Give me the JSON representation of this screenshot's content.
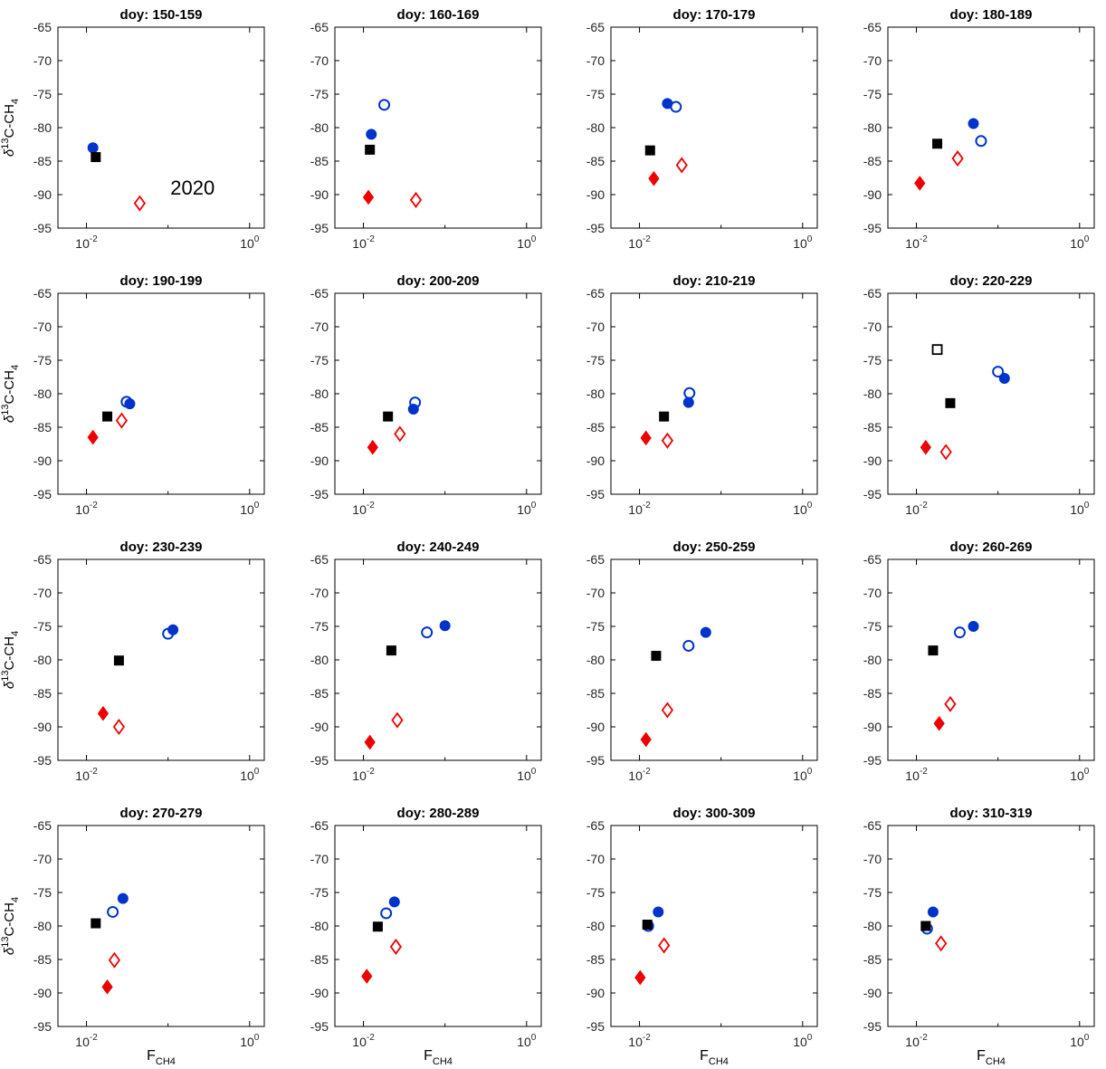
{
  "figure": {
    "ylabel": {
      "delta": "δ",
      "sup": "13",
      "main": "C-CH",
      "sub": "4"
    },
    "xlabel": {
      "main": "F",
      "sub": "CH4"
    },
    "ylim": [
      -95,
      -65
    ],
    "yticks": [
      -65,
      -70,
      -75,
      -80,
      -85,
      -90,
      -95
    ],
    "xlog_range": [
      -2.35,
      0.18
    ],
    "xticks": [
      {
        "log": -2,
        "base": "10",
        "exp": "-2"
      },
      {
        "log": 0,
        "base": "10",
        "exp": "0"
      }
    ],
    "xminor_logs": [
      -1
    ],
    "grid": false,
    "legend": "none",
    "colors": {
      "blue": "#0033cc",
      "red": "#ee0000",
      "black": "#000000",
      "tick_text": "#262626"
    },
    "markers": {
      "square-filled": {
        "shape": "square",
        "fill": "#000000",
        "stroke": "#000000"
      },
      "square-open": {
        "shape": "square",
        "fill": "none",
        "stroke": "#000000"
      },
      "circle-filled": {
        "shape": "circle",
        "fill": "#0033cc",
        "stroke": "#0033cc"
      },
      "circle-open": {
        "shape": "circle",
        "fill": "none",
        "stroke": "#0033cc"
      },
      "diamond-filled": {
        "shape": "diamond",
        "fill": "#ee0000",
        "stroke": "#ee0000"
      },
      "diamond-open": {
        "shape": "diamond",
        "fill": "none",
        "stroke": "#ee0000"
      }
    }
  },
  "chart_data": [
    {
      "type": "scatter",
      "title": "doy: 150-159",
      "annotation": {
        "text": "2020",
        "x": 0.2,
        "y": -90
      },
      "points": [
        {
          "m": "circle-filled",
          "x": 0.012,
          "y": -83.0
        },
        {
          "m": "square-filled",
          "x": 0.013,
          "y": -84.4
        },
        {
          "m": "diamond-open",
          "x": 0.045,
          "y": -91.3
        }
      ]
    },
    {
      "type": "scatter",
      "title": "doy: 160-169",
      "points": [
        {
          "m": "circle-open",
          "x": 0.018,
          "y": -76.6
        },
        {
          "m": "circle-filled",
          "x": 0.0125,
          "y": -81.0
        },
        {
          "m": "square-filled",
          "x": 0.012,
          "y": -83.3
        },
        {
          "m": "diamond-filled",
          "x": 0.0115,
          "y": -90.4
        },
        {
          "m": "diamond-open",
          "x": 0.044,
          "y": -90.8
        }
      ]
    },
    {
      "type": "scatter",
      "title": "doy: 170-179",
      "points": [
        {
          "m": "circle-filled",
          "x": 0.022,
          "y": -76.4
        },
        {
          "m": "circle-open",
          "x": 0.028,
          "y": -76.9
        },
        {
          "m": "square-filled",
          "x": 0.0135,
          "y": -83.4
        },
        {
          "m": "diamond-open",
          "x": 0.033,
          "y": -85.6
        },
        {
          "m": "diamond-filled",
          "x": 0.015,
          "y": -87.6
        }
      ]
    },
    {
      "type": "scatter",
      "title": "doy: 180-189",
      "points": [
        {
          "m": "circle-filled",
          "x": 0.05,
          "y": -79.4
        },
        {
          "m": "circle-open",
          "x": 0.062,
          "y": -82.0
        },
        {
          "m": "square-filled",
          "x": 0.018,
          "y": -82.4
        },
        {
          "m": "diamond-open",
          "x": 0.032,
          "y": -84.6
        },
        {
          "m": "diamond-filled",
          "x": 0.011,
          "y": -88.3
        }
      ]
    },
    {
      "type": "scatter",
      "title": "doy: 190-199",
      "points": [
        {
          "m": "circle-open",
          "x": 0.031,
          "y": -81.2
        },
        {
          "m": "circle-filled",
          "x": 0.034,
          "y": -81.5
        },
        {
          "m": "square-filled",
          "x": 0.018,
          "y": -83.4
        },
        {
          "m": "diamond-open",
          "x": 0.027,
          "y": -84.0
        },
        {
          "m": "diamond-filled",
          "x": 0.012,
          "y": -86.5
        }
      ]
    },
    {
      "type": "scatter",
      "title": "doy: 200-209",
      "points": [
        {
          "m": "circle-open",
          "x": 0.043,
          "y": -81.3
        },
        {
          "m": "circle-filled",
          "x": 0.041,
          "y": -82.3
        },
        {
          "m": "square-filled",
          "x": 0.02,
          "y": -83.4
        },
        {
          "m": "diamond-open",
          "x": 0.028,
          "y": -86.0
        },
        {
          "m": "diamond-filled",
          "x": 0.013,
          "y": -88.0
        }
      ]
    },
    {
      "type": "scatter",
      "title": "doy: 210-219",
      "points": [
        {
          "m": "circle-open",
          "x": 0.041,
          "y": -79.9
        },
        {
          "m": "circle-filled",
          "x": 0.04,
          "y": -81.3
        },
        {
          "m": "square-filled",
          "x": 0.02,
          "y": -83.4
        },
        {
          "m": "diamond-filled",
          "x": 0.012,
          "y": -86.6
        },
        {
          "m": "diamond-open",
          "x": 0.022,
          "y": -87.0
        }
      ]
    },
    {
      "type": "scatter",
      "title": "doy: 220-229",
      "points": [
        {
          "m": "square-open",
          "x": 0.018,
          "y": -73.4
        },
        {
          "m": "circle-open",
          "x": 0.1,
          "y": -76.7
        },
        {
          "m": "circle-filled",
          "x": 0.12,
          "y": -77.7
        },
        {
          "m": "square-filled",
          "x": 0.026,
          "y": -81.4
        },
        {
          "m": "diamond-filled",
          "x": 0.013,
          "y": -88.0
        },
        {
          "m": "diamond-open",
          "x": 0.023,
          "y": -88.7
        }
      ]
    },
    {
      "type": "scatter",
      "title": "doy: 230-239",
      "points": [
        {
          "m": "circle-filled",
          "x": 0.115,
          "y": -75.5
        },
        {
          "m": "circle-open",
          "x": 0.1,
          "y": -76.1
        },
        {
          "m": "square-filled",
          "x": 0.025,
          "y": -80.1
        },
        {
          "m": "diamond-filled",
          "x": 0.016,
          "y": -88.0
        },
        {
          "m": "diamond-open",
          "x": 0.025,
          "y": -90.0
        }
      ]
    },
    {
      "type": "scatter",
      "title": "doy: 240-249",
      "points": [
        {
          "m": "circle-filled",
          "x": 0.1,
          "y": -74.9
        },
        {
          "m": "circle-open",
          "x": 0.06,
          "y": -75.9
        },
        {
          "m": "square-filled",
          "x": 0.022,
          "y": -78.6
        },
        {
          "m": "diamond-open",
          "x": 0.026,
          "y": -89.0
        },
        {
          "m": "diamond-filled",
          "x": 0.012,
          "y": -92.3
        }
      ]
    },
    {
      "type": "scatter",
      "title": "doy: 250-259",
      "points": [
        {
          "m": "circle-filled",
          "x": 0.065,
          "y": -75.9
        },
        {
          "m": "circle-open",
          "x": 0.04,
          "y": -77.9
        },
        {
          "m": "square-filled",
          "x": 0.016,
          "y": -79.4
        },
        {
          "m": "diamond-open",
          "x": 0.022,
          "y": -87.5
        },
        {
          "m": "diamond-filled",
          "x": 0.012,
          "y": -91.9
        }
      ]
    },
    {
      "type": "scatter",
      "title": "doy: 260-269",
      "points": [
        {
          "m": "circle-filled",
          "x": 0.05,
          "y": -75.0
        },
        {
          "m": "circle-open",
          "x": 0.034,
          "y": -75.9
        },
        {
          "m": "square-filled",
          "x": 0.016,
          "y": -78.6
        },
        {
          "m": "diamond-open",
          "x": 0.026,
          "y": -86.6
        },
        {
          "m": "diamond-filled",
          "x": 0.019,
          "y": -89.5
        }
      ]
    },
    {
      "type": "scatter",
      "title": "doy: 270-279",
      "points": [
        {
          "m": "circle-filled",
          "x": 0.028,
          "y": -75.9
        },
        {
          "m": "circle-open",
          "x": 0.021,
          "y": -77.9
        },
        {
          "m": "square-filled",
          "x": 0.013,
          "y": -79.6
        },
        {
          "m": "diamond-open",
          "x": 0.022,
          "y": -85.1
        },
        {
          "m": "diamond-filled",
          "x": 0.018,
          "y": -89.1
        }
      ]
    },
    {
      "type": "scatter",
      "title": "doy: 280-289",
      "points": [
        {
          "m": "circle-filled",
          "x": 0.024,
          "y": -76.4
        },
        {
          "m": "circle-open",
          "x": 0.019,
          "y": -78.1
        },
        {
          "m": "square-filled",
          "x": 0.015,
          "y": -80.1
        },
        {
          "m": "diamond-open",
          "x": 0.025,
          "y": -83.1
        },
        {
          "m": "diamond-filled",
          "x": 0.011,
          "y": -87.5
        }
      ]
    },
    {
      "type": "scatter",
      "title": "doy: 300-309",
      "points": [
        {
          "m": "circle-filled",
          "x": 0.017,
          "y": -77.9
        },
        {
          "m": "circle-open",
          "x": 0.0128,
          "y": -80.0
        },
        {
          "m": "square-filled",
          "x": 0.0125,
          "y": -79.8
        },
        {
          "m": "diamond-open",
          "x": 0.02,
          "y": -82.9
        },
        {
          "m": "diamond-filled",
          "x": 0.0102,
          "y": -87.7
        }
      ]
    },
    {
      "type": "scatter",
      "title": "doy: 310-319",
      "points": [
        {
          "m": "circle-filled",
          "x": 0.016,
          "y": -77.9
        },
        {
          "m": "circle-open",
          "x": 0.0135,
          "y": -80.4
        },
        {
          "m": "square-filled",
          "x": 0.013,
          "y": -80.0
        },
        {
          "m": "diamond-open",
          "x": 0.02,
          "y": -82.6
        }
      ]
    }
  ]
}
